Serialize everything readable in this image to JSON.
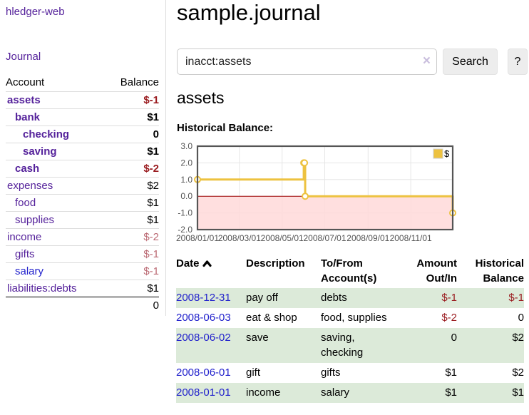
{
  "colors": {
    "link_purple": "#55229b",
    "link_blue": "#2222cc",
    "negative_dark_red": "#9a1b1f",
    "negative_light_red": "#bb6a74",
    "row_green": "#dcead9",
    "chart_line_yellow": "#edc240",
    "chart_negative_fill": "#ffd9d9",
    "chart_zero_line": "#990000",
    "button_gray": "#ededed"
  },
  "sidebar": {
    "brand": "hledger-web",
    "nav_journal": "Journal",
    "col_account": "Account",
    "col_balance": "Balance",
    "accounts": [
      {
        "name": "assets",
        "balance": "$-1"
      },
      {
        "name": "bank",
        "balance": "$1"
      },
      {
        "name": "checking",
        "balance": "0"
      },
      {
        "name": "saving",
        "balance": "$1"
      },
      {
        "name": "cash",
        "balance": "$-2"
      },
      {
        "name": "expenses",
        "balance": "$2"
      },
      {
        "name": "food",
        "balance": "$1"
      },
      {
        "name": "supplies",
        "balance": "$1"
      },
      {
        "name": "income",
        "balance": "$-2"
      },
      {
        "name": "gifts",
        "balance": "$-1"
      },
      {
        "name": "salary",
        "balance": "$-1"
      },
      {
        "name": "liabilities:debts",
        "balance": "$1"
      }
    ],
    "total": "0"
  },
  "main": {
    "title": "sample.journal",
    "search": {
      "value": "inacct:assets",
      "clear_icon": "×",
      "button_label": "Search",
      "help_label": "?"
    },
    "account_heading": "assets",
    "chart_label": "Historical Balance:"
  },
  "chart_data": {
    "type": "line",
    "title": "Historical Balance",
    "step": true,
    "legend": [
      {
        "label": "$",
        "color": "#edc240"
      }
    ],
    "ylim": [
      -2,
      3
    ],
    "xlim_days": [
      0,
      365
    ],
    "grid": true,
    "points": [
      {
        "date": "2008-01-01",
        "day": 0,
        "value": 1
      },
      {
        "date": "2008-06-01",
        "day": 152,
        "value": 2
      },
      {
        "date": "2008-06-02",
        "day": 153,
        "value": 2
      },
      {
        "date": "2008-06-03",
        "day": 154,
        "value": 0
      },
      {
        "date": "2008-12-31",
        "day": 365,
        "value": -1
      }
    ],
    "yticks": [
      {
        "label": "3.0",
        "value": 3
      },
      {
        "label": "2.0",
        "value": 2
      },
      {
        "label": "1.0",
        "value": 1
      },
      {
        "label": "0.0",
        "value": 0
      },
      {
        "label": "-1.0",
        "value": -1
      },
      {
        "label": "-2.0",
        "value": -2
      }
    ],
    "xticks": [
      {
        "label": "2008/01/01",
        "day": 0
      },
      {
        "label": "2008/03/01",
        "day": 60
      },
      {
        "label": "2008/05/01",
        "day": 121
      },
      {
        "label": "2008/07/01",
        "day": 182
      },
      {
        "label": "2008/09/01",
        "day": 244
      },
      {
        "label": "2008/11/01",
        "day": 305
      }
    ]
  },
  "register": {
    "header_date": "Date",
    "header_description": "Description",
    "header_account_1": "To/From",
    "header_account_2": "Account(s)",
    "header_amount_1": "Amount",
    "header_amount_2": "Out/In",
    "header_balance_1": "Historical",
    "header_balance_2": "Balance",
    "rows": [
      {
        "date": "2008-12-31",
        "description": "pay off",
        "account": "debts",
        "amount": "$-1",
        "balance": "$-1"
      },
      {
        "date": "2008-06-03",
        "description": "eat & shop",
        "account": "food, supplies",
        "amount": "$-2",
        "balance": "0"
      },
      {
        "date": "2008-06-02",
        "description": "save",
        "account": "saving, checking",
        "amount": "0",
        "balance": "$2"
      },
      {
        "date": "2008-06-01",
        "description": "gift",
        "account": "gifts",
        "amount": "$1",
        "balance": "$2"
      },
      {
        "date": "2008-01-01",
        "description": "income",
        "account": "salary",
        "amount": "$1",
        "balance": "$1"
      }
    ]
  }
}
